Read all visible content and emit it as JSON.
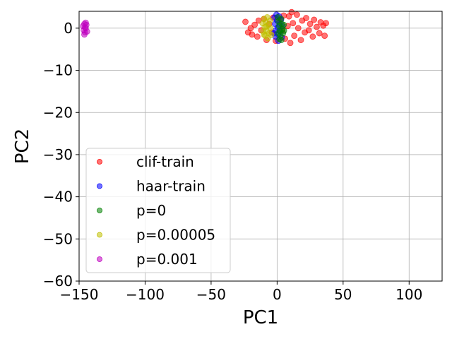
{
  "chart_data": {
    "type": "scatter",
    "title": "",
    "xlabel": "PC1",
    "ylabel": "PC2",
    "xlim": [
      -150,
      125
    ],
    "ylim": [
      -60,
      4
    ],
    "xticks": [
      -150,
      -100,
      -50,
      0,
      50,
      100
    ],
    "yticks": [
      -60,
      -50,
      -40,
      -30,
      -20,
      -10,
      0
    ],
    "xtick_labels": [
      "−150",
      "−100",
      "−50",
      "0",
      "50",
      "100"
    ],
    "ytick_labels": [
      "−60",
      "−50",
      "−40",
      "−30",
      "−20",
      "−10",
      "0"
    ],
    "grid": true,
    "legend_position": "lower-left",
    "series": [
      {
        "name": "clif-train",
        "color": "#ff0000",
        "values": [
          [
            -24,
            1.5
          ],
          [
            -20,
            0
          ],
          [
            -19,
            -1.5
          ],
          [
            -17,
            0.8
          ],
          [
            -15,
            -2
          ],
          [
            -14,
            1.8
          ],
          [
            -12,
            -0.5
          ],
          [
            -10,
            2.2
          ],
          [
            -8,
            -2.8
          ],
          [
            -6,
            1
          ],
          [
            -4,
            -1
          ],
          [
            -3,
            2.5
          ],
          [
            -1,
            -3
          ],
          [
            2,
            2
          ],
          [
            4,
            -0.5
          ],
          [
            5,
            3
          ],
          [
            6,
            -2.5
          ],
          [
            8,
            0.5
          ],
          [
            9,
            2.8
          ],
          [
            10,
            -3.5
          ],
          [
            12,
            1.2
          ],
          [
            13,
            -1.8
          ],
          [
            15,
            3.2
          ],
          [
            16,
            0
          ],
          [
            18,
            -2.8
          ],
          [
            19,
            1.8
          ],
          [
            21,
            -1
          ],
          [
            22,
            2.4
          ],
          [
            24,
            -0.5
          ],
          [
            25,
            1
          ],
          [
            27,
            -2
          ],
          [
            28,
            2
          ],
          [
            30,
            0.3
          ],
          [
            32,
            -1.2
          ],
          [
            33,
            1.4
          ],
          [
            35,
            0.6
          ],
          [
            36,
            -1.8
          ],
          [
            37,
            1.2
          ],
          [
            -22,
            -1
          ],
          [
            11,
            3.8
          ]
        ]
      },
      {
        "name": "haar-train",
        "color": "#0000ff",
        "values": [
          [
            -2,
            2.5
          ],
          [
            -1.5,
            1
          ],
          [
            -1,
            -0.5
          ],
          [
            -1.2,
            -2
          ],
          [
            -0.5,
            3.2
          ],
          [
            0,
            1.8
          ],
          [
            0.5,
            0.2
          ],
          [
            0.8,
            -1.5
          ],
          [
            1,
            -3
          ],
          [
            1.5,
            2.8
          ],
          [
            2,
            0.8
          ],
          [
            2.5,
            -0.8
          ],
          [
            3,
            2
          ],
          [
            3.5,
            -2.2
          ],
          [
            -2.5,
            -1.2
          ],
          [
            4,
            0.5
          ]
        ]
      },
      {
        "name": "p=0",
        "color": "#008000",
        "values": [
          [
            0.5,
            2.6
          ],
          [
            1,
            1.6
          ],
          [
            1.5,
            0.5
          ],
          [
            2,
            -0.6
          ],
          [
            2.5,
            -1.8
          ],
          [
            3,
            2.2
          ],
          [
            3.5,
            1
          ],
          [
            4,
            -0.2
          ],
          [
            4.5,
            -1.2
          ],
          [
            5,
            0.8
          ],
          [
            1.8,
            -2.6
          ],
          [
            3.2,
            -2.8
          ],
          [
            5.2,
            -0.6
          ],
          [
            0.8,
            -1.2
          ]
        ]
      },
      {
        "name": "p=0.00005",
        "color": "#bfbf00",
        "values": [
          [
            -11,
            1.2
          ],
          [
            -10.5,
            -0.8
          ],
          [
            -10,
            2.2
          ],
          [
            -9.5,
            0.2
          ],
          [
            -9,
            -1.8
          ],
          [
            -8.5,
            1.4
          ],
          [
            -8,
            -0.6
          ],
          [
            -7.5,
            2.6
          ],
          [
            -7,
            -2.4
          ],
          [
            -6.5,
            0.8
          ],
          [
            -6,
            -1.2
          ],
          [
            -5.5,
            1.8
          ],
          [
            -5,
            0
          ],
          [
            -4.5,
            -1.6
          ],
          [
            -8,
            0.4
          ],
          [
            -10,
            -1.5
          ]
        ]
      },
      {
        "name": "p=0.001",
        "color": "#bf00bf",
        "values": [
          [
            -147,
            0.5
          ],
          [
            -146.5,
            -0.5
          ],
          [
            -146,
            1
          ],
          [
            -145.5,
            -1
          ],
          [
            -145,
            0
          ],
          [
            -144.5,
            0.8
          ],
          [
            -144,
            -0.8
          ],
          [
            -146,
            -1.5
          ],
          [
            -145,
            1.3
          ],
          [
            -145.5,
            0.2
          ]
        ]
      }
    ]
  }
}
